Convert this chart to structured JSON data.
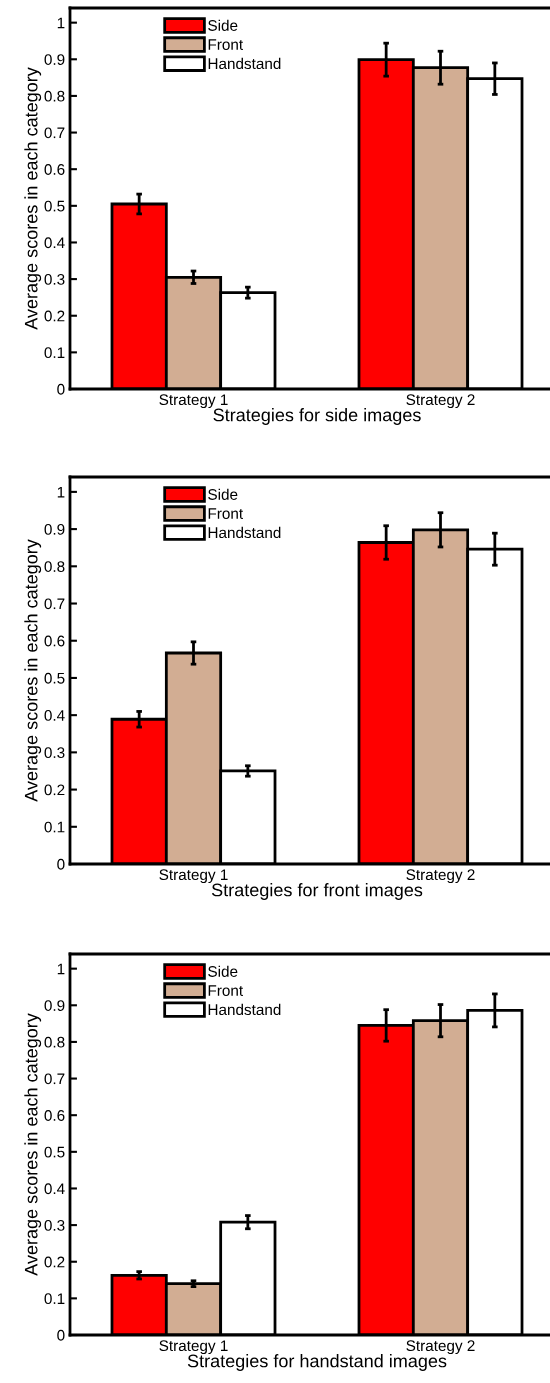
{
  "chart_data": [
    {
      "type": "bar",
      "xlabel": "Strategies for side images",
      "ylabel": "Average scores in each category",
      "categories": [
        "Strategy 1",
        "Strategy 2"
      ],
      "ylim": [
        0,
        1.04
      ],
      "yticks": [
        0,
        0.1,
        0.2,
        0.3,
        0.4,
        0.5,
        0.6,
        0.7,
        0.8,
        0.9,
        1
      ],
      "legend": "top left",
      "grid": false,
      "series": [
        {
          "name": "Side",
          "color": "#ff0000",
          "values": [
            0.505,
            0.899
          ],
          "errors": [
            0.027,
            0.045
          ]
        },
        {
          "name": "Front",
          "color": "#d2ad93",
          "values": [
            0.305,
            0.877
          ],
          "errors": [
            0.017,
            0.045
          ]
        },
        {
          "name": "Handstand",
          "color": "#ffffff",
          "values": [
            0.263,
            0.847
          ],
          "errors": [
            0.015,
            0.043
          ]
        }
      ]
    },
    {
      "type": "bar",
      "xlabel": "Strategies for front images",
      "ylabel": "Average scores in each category",
      "categories": [
        "Strategy 1",
        "Strategy 2"
      ],
      "ylim": [
        0,
        1.04
      ],
      "yticks": [
        0,
        0.1,
        0.2,
        0.3,
        0.4,
        0.5,
        0.6,
        0.7,
        0.8,
        0.9,
        1
      ],
      "legend": "top left",
      "grid": false,
      "series": [
        {
          "name": "Side",
          "color": "#ff0000",
          "values": [
            0.389,
            0.864
          ],
          "errors": [
            0.021,
            0.045
          ]
        },
        {
          "name": "Front",
          "color": "#d2ad93",
          "values": [
            0.567,
            0.898
          ],
          "errors": [
            0.03,
            0.046
          ]
        },
        {
          "name": "Handstand",
          "color": "#ffffff",
          "values": [
            0.25,
            0.846
          ],
          "errors": [
            0.014,
            0.043
          ]
        }
      ]
    },
    {
      "type": "bar",
      "xlabel": "Strategies for handstand images",
      "ylabel": "Average scores in each category",
      "categories": [
        "Strategy 1",
        "Strategy 2"
      ],
      "ylim": [
        0,
        1.04
      ],
      "yticks": [
        0,
        0.1,
        0.2,
        0.3,
        0.4,
        0.5,
        0.6,
        0.7,
        0.8,
        0.9,
        1
      ],
      "legend": "top left",
      "grid": false,
      "series": [
        {
          "name": "Side",
          "color": "#ff0000",
          "values": [
            0.163,
            0.845
          ],
          "errors": [
            0.01,
            0.043
          ]
        },
        {
          "name": "Front",
          "color": "#d2ad93",
          "values": [
            0.14,
            0.858
          ],
          "errors": [
            0.008,
            0.044
          ]
        },
        {
          "name": "Handstand",
          "color": "#ffffff",
          "values": [
            0.308,
            0.886
          ],
          "errors": [
            0.018,
            0.045
          ]
        }
      ]
    }
  ]
}
